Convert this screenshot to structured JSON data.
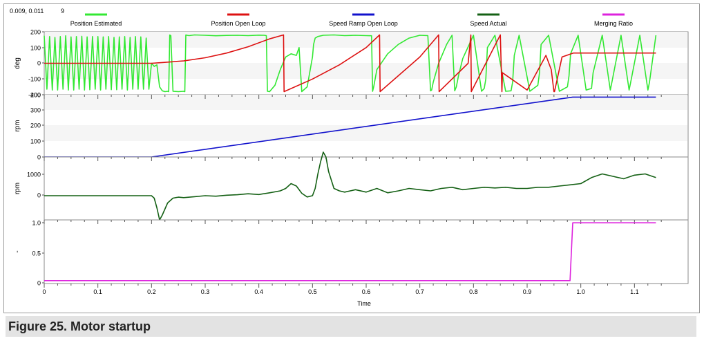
{
  "readout": {
    "cursor": "0.009, 0.011",
    "count": "9"
  },
  "caption": "Figure 25.  Motor startup",
  "colors": {
    "position_estimated": "#33e833",
    "position_open_loop": "#dd1111",
    "speed_ramp": "#1111cc",
    "speed_actual": "#146014",
    "merging_ratio": "#dd22dd"
  },
  "chart_data": {
    "type": "line",
    "xlabel": "Time",
    "xlim": [
      0,
      1.2
    ],
    "x_ticks": [
      "0",
      "0.1",
      "0.2",
      "0.3",
      "0.4",
      "0.5",
      "0.6",
      "0.7",
      "0.8",
      "0.9",
      "1.0",
      "1.1"
    ],
    "legend": [
      "Position Estimated",
      "Position Open Loop",
      "Speed Ramp Open Loop",
      "Speed Actual",
      "Merging Ratio"
    ],
    "panels": [
      {
        "ylabel": "deg",
        "ylim": [
          -200,
          200
        ],
        "y_ticks": [
          "200",
          "100",
          "0",
          "-100",
          "-200"
        ],
        "series": [
          {
            "name": "Position Estimated",
            "x": [
              0,
              0.005,
              0.01,
              0.015,
              0.02,
              0.025,
              0.03,
              0.035,
              0.04,
              0.045,
              0.05,
              0.055,
              0.06,
              0.065,
              0.07,
              0.075,
              0.08,
              0.085,
              0.09,
              0.095,
              0.1,
              0.105,
              0.11,
              0.115,
              0.12,
              0.125,
              0.13,
              0.135,
              0.14,
              0.145,
              0.15,
              0.155,
              0.16,
              0.165,
              0.17,
              0.175,
              0.18,
              0.185,
              0.19,
              0.195,
              0.2,
              0.205,
              0.21,
              0.215,
              0.22,
              0.225,
              0.23,
              0.232,
              0.234,
              0.236,
              0.24,
              0.25,
              0.26,
              0.262,
              0.264,
              0.266,
              0.27,
              0.28,
              0.3,
              0.32,
              0.34,
              0.36,
              0.38,
              0.4,
              0.41,
              0.414,
              0.416,
              0.42,
              0.43,
              0.44,
              0.45,
              0.46,
              0.47,
              0.475,
              0.48,
              0.49,
              0.5,
              0.502,
              0.505,
              0.51,
              0.52,
              0.54,
              0.56,
              0.58,
              0.6,
              0.61,
              0.612,
              0.614,
              0.62,
              0.64,
              0.66,
              0.68,
              0.7,
              0.715,
              0.72,
              0.722,
              0.725,
              0.735,
              0.75,
              0.76,
              0.765,
              0.768,
              0.772,
              0.78,
              0.8,
              0.815,
              0.82,
              0.823,
              0.826,
              0.84,
              0.86,
              0.87,
              0.873,
              0.876,
              0.885,
              0.905,
              0.92,
              0.923,
              0.926,
              0.94,
              0.96,
              0.975,
              0.978,
              0.981,
              0.995,
              1.01,
              1.02,
              1.023,
              1.04,
              1.055,
              1.058,
              1.075,
              1.09,
              1.093,
              1.11,
              1.125,
              1.128,
              1.14
            ],
            "y": [
              175,
              -165,
              170,
              -170,
              165,
              -170,
              170,
              -165,
              175,
              -170,
              168,
              -170,
              170,
              -165,
              172,
              -170,
              168,
              -168,
              170,
              -165,
              170,
              -170,
              168,
              -165,
              170,
              -168,
              165,
              -168,
              168,
              -165,
              170,
              -170,
              165,
              -165,
              170,
              -165,
              168,
              -165,
              160,
              -165,
              0,
              -20,
              -10,
              -150,
              -175,
              -180,
              -178,
              -180,
              180,
              175,
              -178,
              -180,
              -178,
              -180,
              180,
              178,
              176,
              180,
              178,
              175,
              177,
              178,
              176,
              179,
              178,
              176,
              -178,
              -180,
              -140,
              -40,
              40,
              60,
              50,
              100,
              -180,
              -150,
              40,
              120,
              160,
              170,
              178,
              180,
              176,
              178,
              176,
              175,
              -178,
              -150,
              -40,
              60,
              120,
              160,
              178,
              176,
              -175,
              -170,
              -120,
              0,
              120,
              178,
              -175,
              -150,
              -80,
              30,
              178,
              -178,
              -160,
              -100,
              100,
              178,
              -178,
              -175,
              -120,
              50,
              178,
              -178,
              -140,
              -60,
              120,
              178,
              -178,
              -150,
              -80,
              60,
              178,
              -170,
              -160,
              -60,
              178,
              -170,
              -120,
              178,
              -170,
              -120,
              178,
              -170,
              -120,
              178
            ]
          },
          {
            "name": "Position Open Loop",
            "x": [
              0,
              0.2,
              0.22,
              0.26,
              0.3,
              0.34,
              0.38,
              0.42,
              0.446,
              0.447,
              0.5,
              0.55,
              0.6,
              0.625,
              0.626,
              0.7,
              0.735,
              0.736,
              0.79,
              0.795,
              0.796,
              0.85,
              0.853,
              0.854,
              0.9,
              0.935,
              0.945,
              0.95,
              0.951,
              0.965,
              0.986,
              1.14
            ],
            "y": [
              0,
              0,
              5,
              15,
              35,
              65,
              105,
              155,
              180,
              -180,
              -100,
              -10,
              100,
              180,
              -180,
              40,
              180,
              -180,
              0,
              180,
              -180,
              180,
              -180,
              -60,
              -170,
              50,
              -40,
              -180,
              -180,
              40,
              65,
              65
            ]
          }
        ]
      },
      {
        "ylabel": "rpm",
        "ylim": [
          0,
          400
        ],
        "y_ticks": [
          "400",
          "300",
          "200",
          "100",
          "0"
        ],
        "series": [
          {
            "name": "Speed Ramp Open Loop",
            "x": [
              0,
              0.2,
              0.985,
              1.14
            ],
            "y": [
              0,
              0,
              385,
              385
            ]
          }
        ]
      },
      {
        "ylabel": "rpm",
        "ylim": [
          -1000,
          1600
        ],
        "y_ticks": [
          "1000",
          "0"
        ],
        "series": [
          {
            "name": "Speed Actual",
            "x": [
              0,
              0.2,
              0.205,
              0.21,
              0.215,
              0.22,
              0.23,
              0.24,
              0.25,
              0.26,
              0.28,
              0.3,
              0.32,
              0.34,
              0.36,
              0.38,
              0.4,
              0.42,
              0.44,
              0.45,
              0.46,
              0.47,
              0.48,
              0.49,
              0.5,
              0.505,
              0.51,
              0.515,
              0.52,
              0.525,
              0.53,
              0.54,
              0.55,
              0.56,
              0.58,
              0.6,
              0.62,
              0.64,
              0.66,
              0.68,
              0.7,
              0.72,
              0.74,
              0.76,
              0.78,
              0.8,
              0.82,
              0.84,
              0.86,
              0.88,
              0.9,
              0.92,
              0.94,
              0.96,
              0.98,
              1.0,
              1.02,
              1.04,
              1.06,
              1.08,
              1.1,
              1.12,
              1.14
            ],
            "y": [
              0,
              0,
              -100,
              -500,
              -1000,
              -800,
              -300,
              -100,
              -60,
              -80,
              -40,
              0,
              -20,
              20,
              40,
              80,
              50,
              120,
              200,
              300,
              500,
              400,
              100,
              -50,
              0,
              300,
              900,
              1400,
              1800,
              1600,
              1000,
              300,
              200,
              150,
              250,
              150,
              300,
              120,
              200,
              300,
              250,
              200,
              300,
              350,
              250,
              300,
              350,
              320,
              350,
              300,
              300,
              350,
              350,
              400,
              450,
              500,
              750,
              900,
              800,
              700,
              850,
              900,
              750
            ]
          }
        ]
      },
      {
        "ylabel": "-",
        "ylim": [
          -0.05,
          1.05
        ],
        "y_ticks": [
          "1.0",
          "0.5",
          "0"
        ],
        "series": [
          {
            "name": "Merging Ratio",
            "x": [
              0,
              0.98,
              0.985,
              1.14
            ],
            "y": [
              0,
              0,
              1,
              1
            ]
          }
        ]
      }
    ]
  }
}
